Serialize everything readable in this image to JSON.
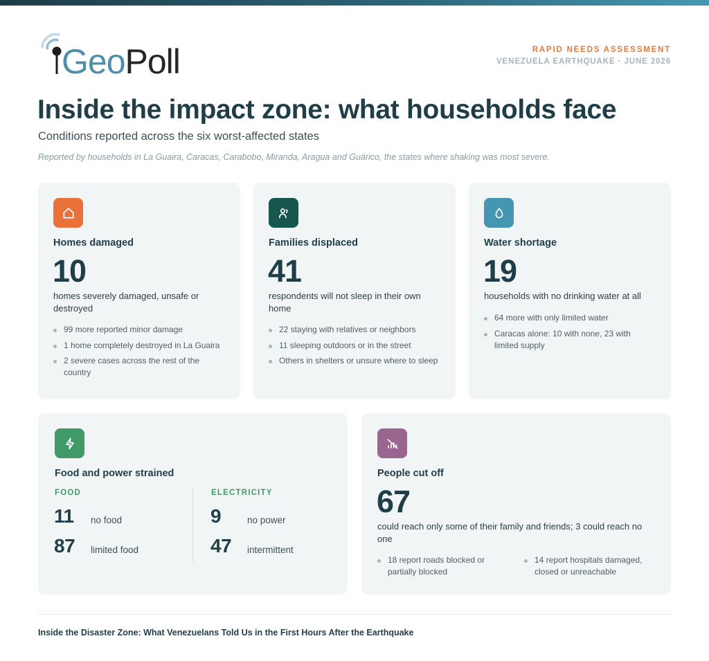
{
  "brand": {
    "logo_geo": "Geo",
    "logo_poll": "Poll"
  },
  "meta": {
    "kicker": "RAPID NEEDS ASSESSMENT",
    "event": "VENEZUELA EARTHQUAKE · JUNE 2026"
  },
  "header": {
    "title": "Inside the impact zone: what households face",
    "subtitle": "Conditions reported across the six worst-affected states",
    "note": "Reported by households in La Guaira, Caracas, Carabobo, Miranda, Aragua and Guárico, the states where shaking was most severe."
  },
  "colors": {
    "orange": "#e8723a",
    "teal": "#17564f",
    "blue": "#4496b2",
    "green": "#3f9a67",
    "purple": "#9a668f"
  },
  "cards": {
    "homes": {
      "icon": "home-icon",
      "title": "Homes damaged",
      "value": "10",
      "desc": "homes severely damaged, unsafe or destroyed",
      "bullets": [
        "99 more reported minor damage",
        "1 home completely destroyed in La Guaira",
        "2 severe cases across the rest of the country"
      ]
    },
    "families": {
      "icon": "person-icon",
      "title": "Families displaced",
      "value": "41",
      "desc": "respondents will not sleep in their own home",
      "bullets": [
        "22 staying with relatives or neighbors",
        "11 sleeping outdoors or in the street",
        "Others in shelters or unsure where to sleep"
      ]
    },
    "water": {
      "icon": "water-drop-icon",
      "title": "Water shortage",
      "value": "19",
      "desc": "households with no drinking water at all",
      "bullets": [
        "64 more with only limited water",
        "Caracas alone: 10 with none, 23 with limited supply"
      ]
    },
    "food_power": {
      "icon": "lightning-icon",
      "title": "Food and power strained",
      "food": {
        "label": "FOOD",
        "rows": [
          {
            "value": "11",
            "label": "no food"
          },
          {
            "value": "87",
            "label": "limited food"
          }
        ]
      },
      "electricity": {
        "label": "ELECTRICITY",
        "rows": [
          {
            "value": "9",
            "label": "no power"
          },
          {
            "value": "47",
            "label": "intermittent"
          }
        ]
      }
    },
    "cutoff": {
      "icon": "no-signal-icon",
      "title": "People cut off",
      "value": "67",
      "desc": "could reach only some of their family and friends; 3 could reach no one",
      "bullets": [
        "18 report roads blocked or partially blocked",
        "14 report hospitals damaged, closed or unreachable"
      ]
    }
  },
  "footer": {
    "text": "Inside the Disaster Zone: What Venezuelans Told Us in the First Hours After the Earthquake"
  }
}
